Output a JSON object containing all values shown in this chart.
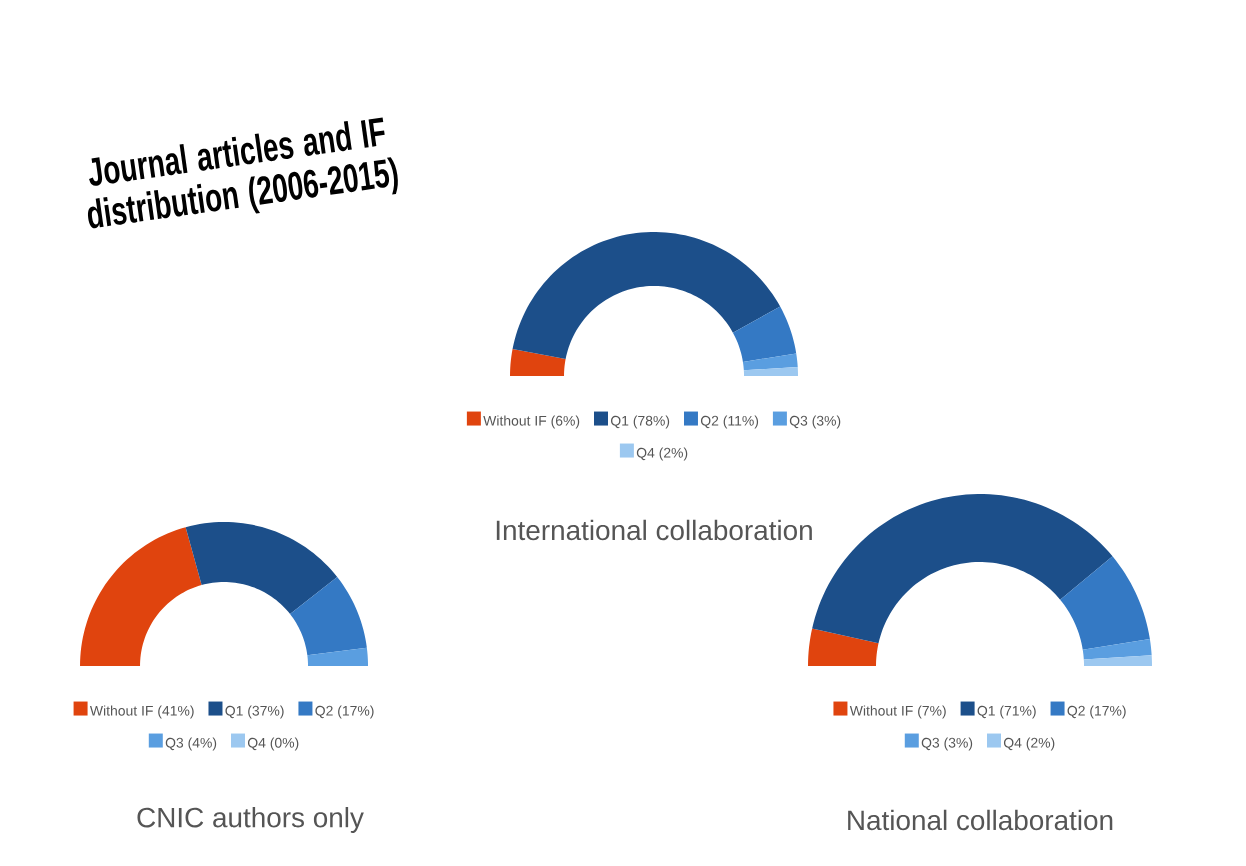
{
  "chart_data": [
    {
      "type": "donut",
      "title": "International collaboration",
      "annotations": [
        "Journal articles and IF distribution (2006-2015)"
      ],
      "legend": "bottom",
      "categories": [
        "Without IF (6%)",
        "Q1 (78%)",
        "Q2 (11%)",
        "Q3 (3%)",
        "Q4 (2%)"
      ],
      "values": [
        6,
        78,
        11,
        3,
        2
      ],
      "colors": [
        "#e0440e",
        "#1c4f8a",
        "#3479c4",
        "#5a9ee0",
        "#9cc8f0"
      ]
    },
    {
      "type": "donut",
      "title": "CNIC authors only",
      "legend": "bottom",
      "categories": [
        "Without IF (41%)",
        "Q1 (37%)",
        "Q2 (17%)",
        "Q3 (4%)",
        "Q4 (0%)"
      ],
      "values": [
        41,
        37,
        17,
        4,
        0
      ],
      "colors": [
        "#e0440e",
        "#1c4f8a",
        "#3479c4",
        "#5a9ee0",
        "#9cc8f0"
      ]
    },
    {
      "type": "donut",
      "title": "National collaboration",
      "legend": "bottom",
      "categories": [
        "Without IF (7%)",
        "Q1 (71%)",
        "Q2 (17%)",
        "Q3 (3%)",
        "Q4 (2%)"
      ],
      "values": [
        7,
        71,
        17,
        3,
        2
      ],
      "colors": [
        "#e0440e",
        "#1c4f8a",
        "#3479c4",
        "#5a9ee0",
        "#9cc8f0"
      ]
    }
  ]
}
